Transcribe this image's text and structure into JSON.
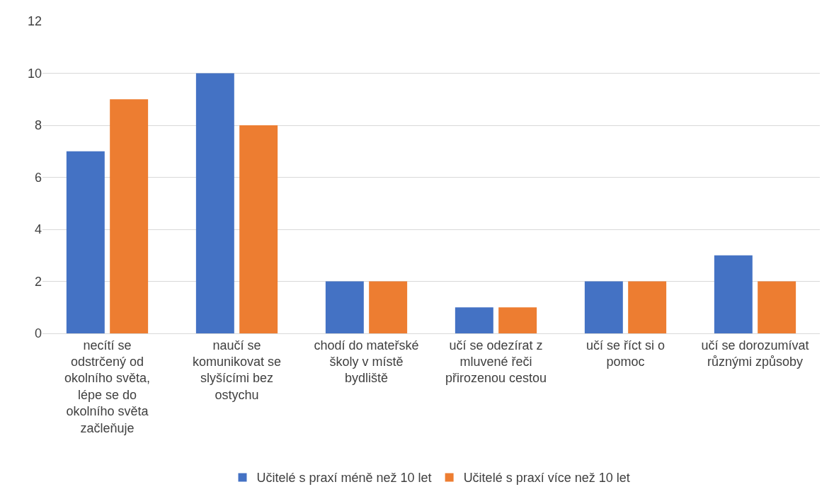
{
  "chart_data": {
    "type": "bar",
    "categories": [
      "necítí se odstrčený od okolního světa, lépe se do okolního světa začleňuje",
      "naučí se komunikovat se slyšícími bez ostychu",
      "chodí do mateřské školy v místě bydliště",
      "učí se odezírat z mluvené řeči přirozenou cestou",
      "učí se říct si o pomoc",
      "učí se dorozumívat různými způsoby"
    ],
    "series": [
      {
        "name": "Učitelé s praxí méně než 10 let",
        "color": "#4472c4",
        "values": [
          7,
          10,
          2,
          1,
          2,
          3
        ]
      },
      {
        "name": "Učitelé s praxí více než 10 let",
        "color": "#ed7d31",
        "values": [
          9,
          8,
          2,
          1,
          2,
          2
        ]
      }
    ],
    "ylim": [
      0,
      12
    ],
    "yticks": [
      0,
      2,
      4,
      6,
      8,
      10,
      12
    ],
    "grid": "y",
    "legend": "bottom"
  }
}
